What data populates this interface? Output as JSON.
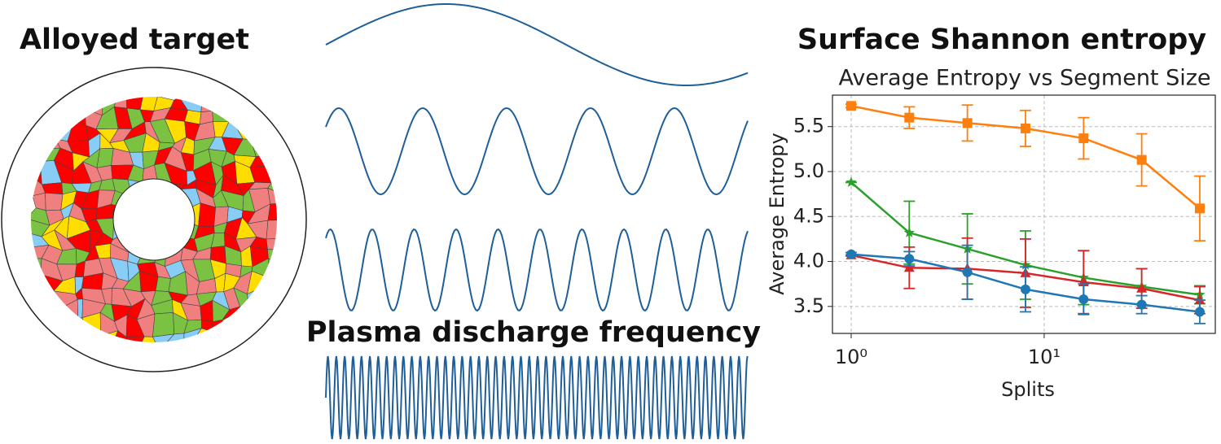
{
  "labels": {
    "left": "Alloyed target",
    "middle": "Plasma discharge frequency",
    "right": "Surface Shannon entropy"
  },
  "chart_data": {
    "type": "line",
    "title": "Average Entropy vs Segment Size",
    "x_label": "Splits",
    "y_label": "Average Entropy",
    "x": [
      1,
      2,
      4,
      8,
      16,
      32,
      64
    ],
    "x_scale": "log",
    "grid": true,
    "xlim": [
      0.8,
      77
    ],
    "xticks": [
      {
        "value": 1,
        "label": "10⁰"
      },
      {
        "value": 10,
        "label": "10¹"
      }
    ],
    "ylim": [
      3.2,
      5.85
    ],
    "yticks": [
      3.5,
      {
        "value": 4,
        "label": "4.0"
      },
      4.5,
      {
        "value": 5,
        "label": "5.0"
      },
      5.5
    ],
    "series": [
      {
        "color": "#ff7f0e",
        "marker": "square",
        "values": [
          5.73,
          5.6,
          5.54,
          5.48,
          5.37,
          5.13,
          4.59
        ],
        "errors": [
          0.02,
          0.12,
          0.2,
          0.2,
          0.23,
          0.29,
          0.36
        ]
      },
      {
        "color": "#2ca02c",
        "marker": "star",
        "values": [
          4.88,
          4.32,
          4.14,
          3.96,
          3.82,
          3.72,
          3.63
        ],
        "errors": [
          0,
          0.35,
          0.39,
          0.38,
          0.3,
          0.2,
          0.1
        ]
      },
      {
        "color": "#d62728",
        "marker": "triangle",
        "values": [
          4.07,
          3.93,
          3.92,
          3.87,
          3.77,
          3.7,
          3.57
        ],
        "errors": [
          0,
          0.23,
          0.34,
          0.38,
          0.35,
          0.22,
          0.15
        ]
      },
      {
        "color": "#1f77b4",
        "marker": "circle",
        "values": [
          4.08,
          4.03,
          3.88,
          3.69,
          3.58,
          3.52,
          3.44
        ],
        "errors": [
          0.02,
          0.08,
          0.3,
          0.25,
          0.17,
          0.1,
          0.13
        ]
      }
    ]
  }
}
